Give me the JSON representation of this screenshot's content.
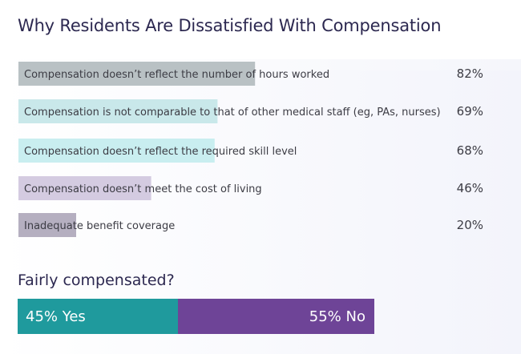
{
  "title": "Why Residents Are Dissatisfied With Compensation",
  "chart_data": {
    "type": "bar",
    "orientation": "horizontal",
    "title": "Why Residents Are Dissatisfied With Compensation",
    "categories": [
      "Compensation doesn’t reflect the number of hours worked",
      "Compensation is not comparable to that of other medical staff (eg, PAs, nurses)",
      "Compensation doesn’t reflect the required skill level",
      "Compensation doesn’t meet the cost of living",
      "Inadequate benefit coverage"
    ],
    "values": [
      82,
      69,
      68,
      46,
      20
    ],
    "value_labels": [
      "82%",
      "69%",
      "68%",
      "46%",
      "20%"
    ],
    "bar_colors": [
      "#b9c1c4",
      "#c9e8ea",
      "#c9eef0",
      "#d4cbe1",
      "#b5afc0"
    ],
    "xlim": [
      0,
      100
    ],
    "grid": false
  },
  "fairly_compensated": {
    "title": "Fairly compensated?",
    "chart_data": {
      "type": "bar",
      "stacked": true,
      "categories": [
        "Yes",
        "No"
      ],
      "values": [
        45,
        55
      ],
      "labels": [
        "45% Yes",
        "55% No"
      ],
      "colors": [
        "#1f9a9d",
        "#6e4497"
      ]
    }
  },
  "colors": {
    "title_text": "#2c2850",
    "label_text": "#3c3c44"
  }
}
